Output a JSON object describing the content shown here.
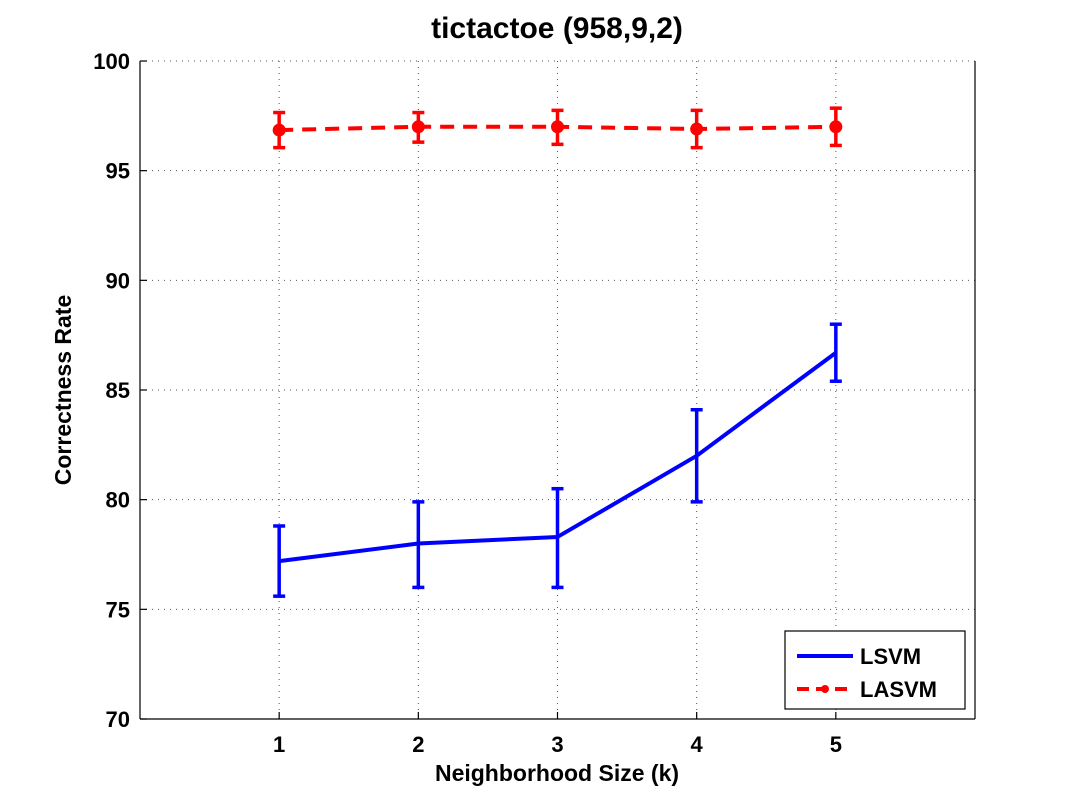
{
  "chart_data": {
    "type": "line",
    "title": "tictactoe (958,9,2)",
    "xlabel": "Neighborhood Size (k)",
    "ylabel": "Correctness Rate",
    "x": [
      1,
      2,
      3,
      4,
      5
    ],
    "xlim": [
      0,
      6
    ],
    "ylim": [
      70,
      100
    ],
    "xticks": [
      1,
      2,
      3,
      4,
      5
    ],
    "yticks": [
      70,
      75,
      80,
      85,
      90,
      95,
      100
    ],
    "grid": true,
    "legend_position": "bottom-right",
    "series": [
      {
        "name": "LSVM",
        "color": "#0000ff",
        "line_style": "solid",
        "marker": "none",
        "values": [
          77.2,
          78.0,
          78.3,
          82.0,
          86.7
        ],
        "error_low": [
          75.6,
          76.0,
          76.0,
          79.9,
          85.4
        ],
        "error_high": [
          78.8,
          79.9,
          80.5,
          84.1,
          88.0
        ]
      },
      {
        "name": "LASVM",
        "color": "#ff0000",
        "line_style": "dashed",
        "marker": "dot",
        "values": [
          96.85,
          97.0,
          97.0,
          96.9,
          97.0
        ],
        "error_low": [
          96.05,
          96.3,
          96.2,
          96.05,
          96.15
        ],
        "error_high": [
          97.65,
          97.65,
          97.75,
          97.75,
          97.85
        ]
      }
    ]
  }
}
